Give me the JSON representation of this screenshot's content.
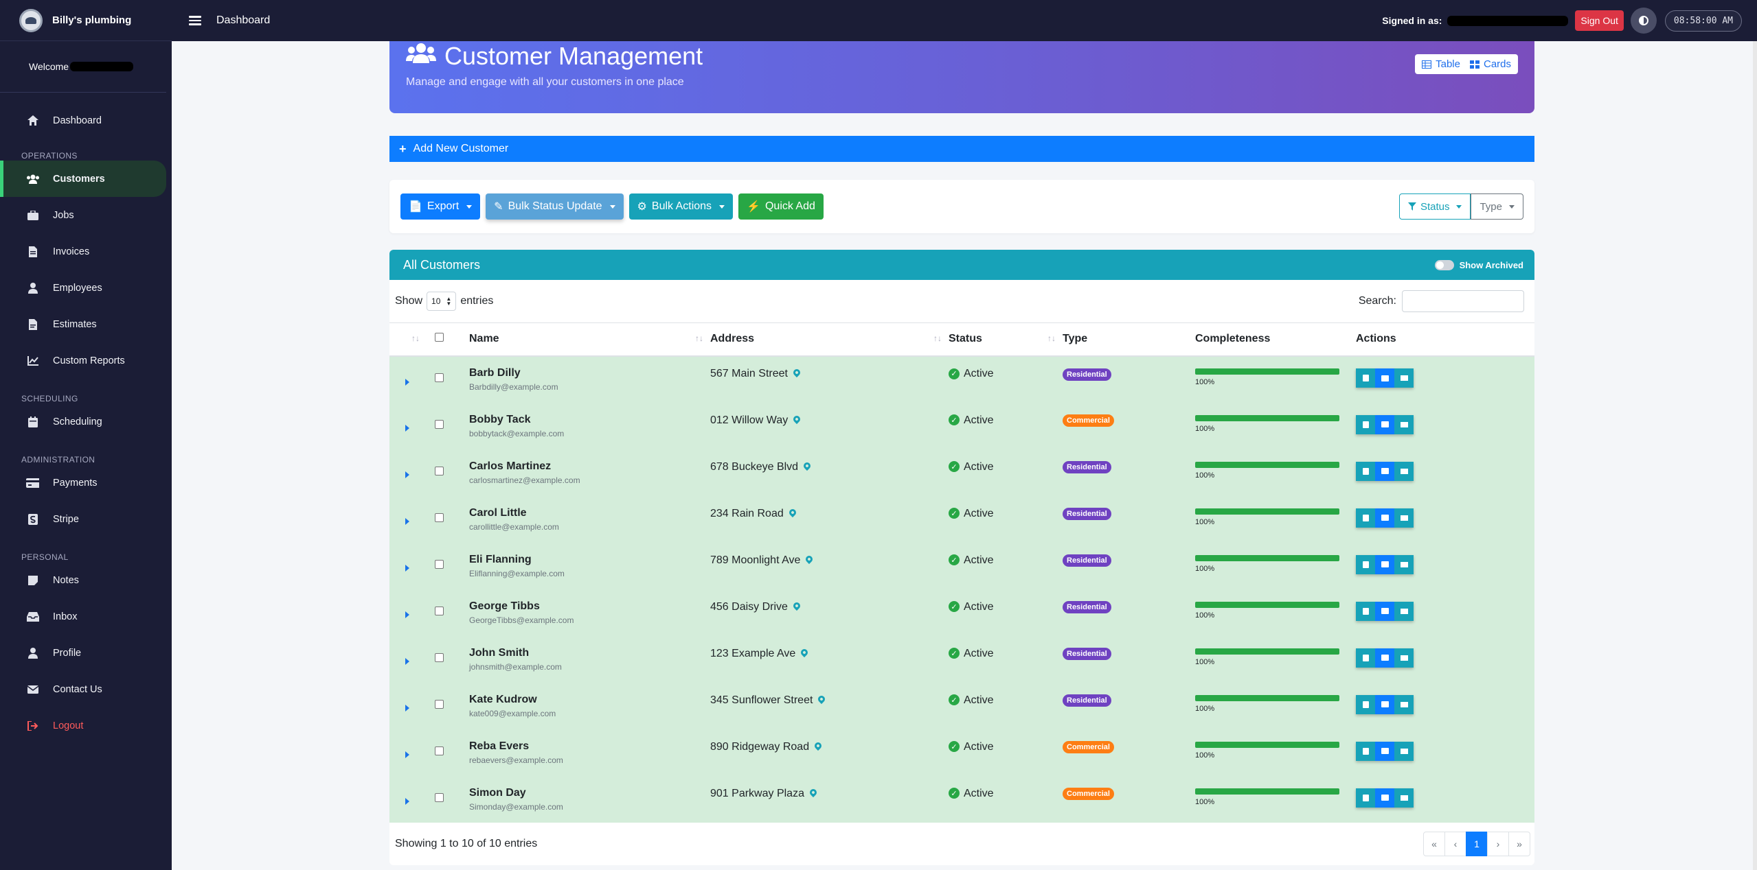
{
  "brand": {
    "name": "Billy's plumbing"
  },
  "sidebar": {
    "welcome": "Welcome",
    "items": [
      {
        "label": "Dashboard",
        "icon": "home-icon"
      },
      {
        "section": "OPERATIONS"
      },
      {
        "label": "Customers",
        "icon": "users-icon",
        "active": true
      },
      {
        "label": "Jobs",
        "icon": "briefcase-icon"
      },
      {
        "label": "Invoices",
        "icon": "file-invoice-icon"
      },
      {
        "label": "Employees",
        "icon": "user-icon"
      },
      {
        "label": "Estimates",
        "icon": "file-alt-icon"
      },
      {
        "label": "Custom Reports",
        "icon": "chart-line-icon"
      },
      {
        "section": "SCHEDULING"
      },
      {
        "label": "Scheduling",
        "icon": "calendar-icon"
      },
      {
        "section": "ADMINISTRATION"
      },
      {
        "label": "Payments",
        "icon": "credit-card-icon"
      },
      {
        "label": "Stripe",
        "icon": "stripe-icon"
      },
      {
        "section": "PERSONAL"
      },
      {
        "label": "Notes",
        "icon": "sticky-note-icon"
      },
      {
        "label": "Inbox",
        "icon": "inbox-icon"
      },
      {
        "label": "Profile",
        "icon": "user-icon"
      },
      {
        "label": "Contact Us",
        "icon": "envelope-icon"
      },
      {
        "label": "Logout",
        "icon": "sign-out-icon",
        "logout": true
      }
    ]
  },
  "topbar": {
    "title": "Dashboard",
    "signed_in_label": "Signed in as:",
    "sign_out": "Sign Out",
    "clock": "08:58:00 AM"
  },
  "hero": {
    "title": "Customer Management",
    "subtitle": "Manage and engage with all your customers in one place",
    "table_label": "Table",
    "cards_label": "Cards"
  },
  "add_customer": "Add New Customer",
  "toolbar": {
    "export": "Export",
    "bulk_status": "Bulk Status Update",
    "bulk_actions": "Bulk Actions",
    "quick_add": "Quick Add",
    "status_filter": "Status",
    "type_filter": "Type"
  },
  "card": {
    "title": "All Customers",
    "show_archived": "Show Archived",
    "show_label": "Show",
    "entries_value": "10",
    "entries_label": "entries",
    "search_label": "Search:",
    "info": "Showing 1 to 10 of 10 entries"
  },
  "columns": [
    "Name",
    "Address",
    "Status",
    "Type",
    "Completeness",
    "Actions"
  ],
  "customers": [
    {
      "name": "Barb Dilly",
      "email": "Barbdilly@example.com",
      "address": "567 Main Street",
      "status": "Active",
      "type": "Residential",
      "completeness": "100%"
    },
    {
      "name": "Bobby Tack",
      "email": "bobbytack@example.com",
      "address": "012 Willow Way",
      "status": "Active",
      "type": "Commercial",
      "completeness": "100%"
    },
    {
      "name": "Carlos Martinez",
      "email": "carlosmartinez@example.com",
      "address": "678 Buckeye Blvd",
      "status": "Active",
      "type": "Residential",
      "completeness": "100%"
    },
    {
      "name": "Carol Little",
      "email": "carollittle@example.com",
      "address": "234 Rain Road",
      "status": "Active",
      "type": "Residential",
      "completeness": "100%"
    },
    {
      "name": "Eli Flanning",
      "email": "Eliflanning@example.com",
      "address": "789 Moonlight Ave",
      "status": "Active",
      "type": "Residential",
      "completeness": "100%"
    },
    {
      "name": "George Tibbs",
      "email": "GeorgeTibbs@example.com",
      "address": "456 Daisy Drive",
      "status": "Active",
      "type": "Residential",
      "completeness": "100%"
    },
    {
      "name": "John Smith",
      "email": "johnsmith@example.com",
      "address": "123 Example Ave",
      "status": "Active",
      "type": "Residential",
      "completeness": "100%"
    },
    {
      "name": "Kate Kudrow",
      "email": "kate009@example.com",
      "address": "345 Sunflower Street",
      "status": "Active",
      "type": "Residential",
      "completeness": "100%"
    },
    {
      "name": "Reba Evers",
      "email": "rebaevers@example.com",
      "address": "890 Ridgeway Road",
      "status": "Active",
      "type": "Commercial",
      "completeness": "100%"
    },
    {
      "name": "Simon Day",
      "email": "Simonday@example.com",
      "address": "901 Parkway Plaza",
      "status": "Active",
      "type": "Commercial",
      "completeness": "100%"
    }
  ],
  "pagination": [
    "«",
    "‹",
    "1",
    "›",
    "»"
  ],
  "colors": {
    "sidebar_bg": "#1b1d36",
    "accent_blue": "#0d7dff",
    "teal": "#17a2b8",
    "row_green": "#d4edda",
    "success": "#28a745"
  }
}
